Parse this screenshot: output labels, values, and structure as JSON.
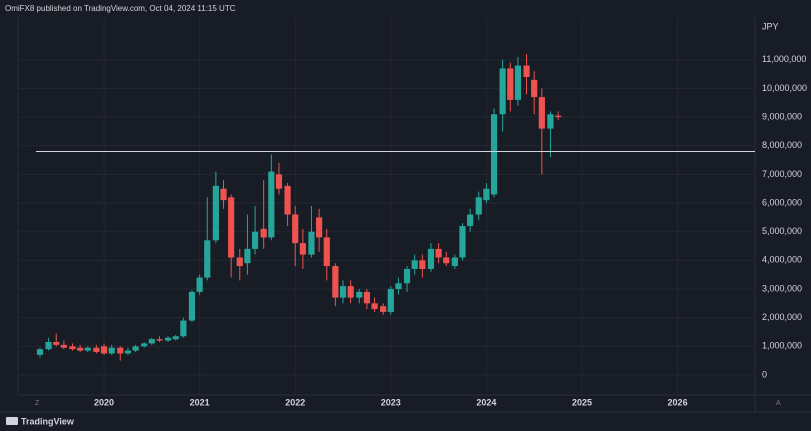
{
  "header": "OmiFX8 published on TradingView.com, Oct 04, 2024 11:15 UTC",
  "footer_logo": "TradingView",
  "axis_buttons": [
    "Z",
    "A"
  ],
  "chart_data": {
    "type": "candlestick",
    "currency": "JPY",
    "up_color": "#26a69a",
    "down_color": "#ef5350",
    "hline": 7800000,
    "hline_color": "#d1d4dc",
    "grid": true,
    "xlim": [
      2019.1,
      2026.81
    ],
    "xticks": [
      2020,
      2021,
      2022,
      2023,
      2024,
      2025,
      2026
    ],
    "ylim": [
      -700000,
      12460000
    ],
    "yticks": [
      0,
      {
        "value": 1000000,
        "label": "1,000,000"
      },
      {
        "value": 2000000,
        "label": "2,000,000"
      },
      {
        "value": 3000000,
        "label": "3,000,000"
      },
      {
        "value": 4000000,
        "label": "4,000,000"
      },
      {
        "value": 5000000,
        "label": "5,000,000"
      },
      {
        "value": 6000000,
        "label": "6,000,000"
      },
      {
        "value": 7000000,
        "label": "7,000,000"
      },
      {
        "value": 8000000,
        "label": "8,000,000"
      },
      {
        "value": 9000000,
        "label": "9,000,000"
      },
      {
        "value": 10000000,
        "label": "10,000,000"
      },
      {
        "value": 11000000,
        "label": "11,000,000"
      }
    ],
    "x": [
      2019.33,
      2019.42,
      2019.5,
      2019.58,
      2019.67,
      2019.75,
      2019.83,
      2019.92,
      2020,
      2020.08,
      2020.17,
      2020.25,
      2020.33,
      2020.42,
      2020.5,
      2020.58,
      2020.67,
      2020.75,
      2020.83,
      2020.92,
      2021,
      2021.08,
      2021.17,
      2021.25,
      2021.33,
      2021.42,
      2021.5,
      2021.58,
      2021.67,
      2021.75,
      2021.83,
      2021.92,
      2022,
      2022.08,
      2022.17,
      2022.25,
      2022.33,
      2022.42,
      2022.5,
      2022.58,
      2022.67,
      2022.75,
      2022.83,
      2022.92,
      2023,
      2023.08,
      2023.17,
      2023.25,
      2023.33,
      2023.42,
      2023.5,
      2023.58,
      2023.67,
      2023.75,
      2023.83,
      2023.92,
      2024,
      2024.08,
      2024.17,
      2024.25,
      2024.33,
      2024.42,
      2024.5,
      2024.58,
      2024.67,
      2024.75
    ],
    "open": [
      700000,
      900000,
      1150000,
      1050000,
      1000000,
      950000,
      850000,
      950000,
      1000000,
      750000,
      950000,
      750000,
      850000,
      1000000,
      1100000,
      1250000,
      1200000,
      1250000,
      1350000,
      1900000,
      2900000,
      3400000,
      4700000,
      6500000,
      6200000,
      4100000,
      3900000,
      4400000,
      5100000,
      4800000,
      7000000,
      6600000,
      5600000,
      4600000,
      4200000,
      5500000,
      4800000,
      3800000,
      2700000,
      3100000,
      2700000,
      2900000,
      2500000,
      2400000,
      2200000,
      3000000,
      3200000,
      3700000,
      4000000,
      3700000,
      4400000,
      4100000,
      3800000,
      4100000,
      5200000,
      5600000,
      6100000,
      6300000,
      9100000,
      10700000,
      9600000,
      10800000,
      10300000,
      9700000,
      8600000,
      9050000
    ],
    "high": [
      950000,
      1300000,
      1450000,
      1200000,
      1100000,
      1050000,
      1000000,
      1050000,
      1100000,
      1050000,
      1000000,
      950000,
      1050000,
      1150000,
      1300000,
      1350000,
      1350000,
      1400000,
      2000000,
      2950000,
      3500000,
      6200000,
      7100000,
      6800000,
      6300000,
      4400000,
      5600000,
      5900000,
      6800000,
      7700000,
      7400000,
      6700000,
      5900000,
      5100000,
      5900000,
      5800000,
      5100000,
      3900000,
      3300000,
      3300000,
      3000000,
      3000000,
      2700000,
      2500000,
      3100000,
      3400000,
      3800000,
      4200000,
      4200000,
      4600000,
      4600000,
      4300000,
      4200000,
      5300000,
      5800000,
      6400000,
      6700000,
      9300000,
      11000000,
      10900000,
      11100000,
      11200000,
      10600000,
      10000000,
      9200000,
      9200000
    ],
    "low": [
      600000,
      850000,
      1000000,
      900000,
      850000,
      800000,
      800000,
      750000,
      700000,
      700000,
      500000,
      700000,
      800000,
      950000,
      1050000,
      1150000,
      1150000,
      1200000,
      1300000,
      1850000,
      2800000,
      3300000,
      4600000,
      5800000,
      3400000,
      3300000,
      3500000,
      4200000,
      4400000,
      4700000,
      6300000,
      5200000,
      3800000,
      3700000,
      4100000,
      4300000,
      3300000,
      2400000,
      2500000,
      2500000,
      2500000,
      2300000,
      2200000,
      2100000,
      2100000,
      2800000,
      2900000,
      3500000,
      3400000,
      3600000,
      3900000,
      3800000,
      3700000,
      4000000,
      5000000,
      5400000,
      6000000,
      6200000,
      8500000,
      9200000,
      9400000,
      9800000,
      9100000,
      7000000,
      7600000,
      8900000
    ],
    "close": [
      900000,
      1150000,
      1050000,
      950000,
      900000,
      850000,
      950000,
      800000,
      750000,
      950000,
      750000,
      850000,
      1000000,
      1100000,
      1250000,
      1200000,
      1300000,
      1350000,
      1900000,
      2900000,
      3400000,
      4700000,
      6600000,
      6100000,
      4100000,
      3800000,
      4400000,
      5000000,
      4800000,
      7100000,
      6500000,
      5600000,
      4600000,
      4200000,
      5000000,
      4800000,
      3800000,
      2700000,
      3100000,
      2700000,
      2900000,
      2500000,
      2300000,
      2200000,
      3000000,
      3200000,
      3700000,
      4000000,
      3700000,
      4400000,
      4100000,
      3900000,
      4100000,
      5200000,
      5600000,
      6200000,
      6500000,
      9100000,
      10700000,
      9600000,
      10800000,
      10400000,
      9700000,
      8600000,
      9100000,
      9000000
    ]
  }
}
